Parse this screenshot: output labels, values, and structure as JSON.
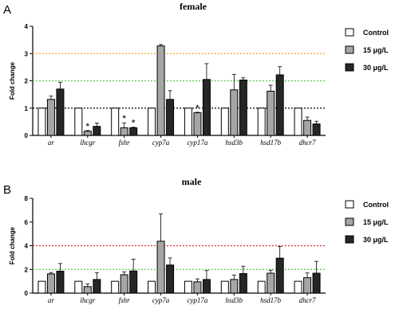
{
  "panel_letters": [
    "A",
    "B"
  ],
  "colors": {
    "control": "#ffffff",
    "dose15": "#a6a6a6",
    "dose30": "#262626",
    "orange_ref": "#f5a623",
    "green_ref": "#57c84d",
    "black_ref": "#000000",
    "red_ref": "#e8262c"
  },
  "chart_data": [
    {
      "type": "bar",
      "title": "female",
      "ylabel": "Fold change",
      "ylim": [
        0,
        4
      ],
      "yticks": [
        "0",
        "1",
        "2",
        "3",
        "4"
      ],
      "categories": [
        "ar",
        "lhcgr",
        "fshr",
        "cyp7a",
        "cyp17a",
        "hsd3b",
        "hsd17b",
        "dhcr7"
      ],
      "series": [
        {
          "name": "Control",
          "values": [
            1,
            1,
            1,
            1,
            1,
            1,
            1,
            1
          ],
          "errors": [
            0,
            0,
            0,
            0,
            0,
            0,
            0,
            0
          ]
        },
        {
          "name": "15 μg/L",
          "values": [
            1.32,
            0.15,
            0.28,
            3.28,
            0.83,
            1.67,
            1.62,
            0.55
          ],
          "errors": [
            0.12,
            0.03,
            0.18,
            0.05,
            0.02,
            0.57,
            0.22,
            0.12
          ]
        },
        {
          "name": "30 μg/L",
          "values": [
            1.7,
            0.33,
            0.28,
            1.32,
            2.05,
            2.03,
            2.22,
            0.42
          ],
          "errors": [
            0.25,
            0.12,
            0.02,
            0.32,
            0.58,
            0.08,
            0.3,
            0.1
          ]
        }
      ],
      "reference_lines": [
        {
          "y": 3,
          "color": "#f5a623"
        },
        {
          "y": 2,
          "color": "#57c84d"
        },
        {
          "y": 1,
          "color": "#000000"
        }
      ],
      "significance": [
        {
          "category": "lhcgr",
          "series": "15 μg/L",
          "label": "*"
        },
        {
          "category": "fshr",
          "series": "15 μg/L",
          "label": "*"
        },
        {
          "category": "fshr",
          "series": "30 μg/L",
          "label": "*"
        },
        {
          "category": "cyp17a",
          "series": "15 μg/L",
          "label": "*"
        }
      ],
      "legend_position": "right"
    },
    {
      "type": "bar",
      "title": "male",
      "ylabel": "Fold change",
      "ylim": [
        0,
        8
      ],
      "yticks": [
        "0",
        "2",
        "4",
        "6",
        "8"
      ],
      "categories": [
        "ar",
        "lhcgr",
        "fshr",
        "cyp7a",
        "cyp17a",
        "hsd3b",
        "hsd17b",
        "dhcr7"
      ],
      "series": [
        {
          "name": "Control",
          "values": [
            1,
            1,
            1,
            1,
            1,
            1,
            1,
            1
          ],
          "errors": [
            0,
            0,
            0,
            0,
            0,
            0,
            0,
            0
          ]
        },
        {
          "name": "15 μg/L",
          "values": [
            1.62,
            0.55,
            1.55,
            4.38,
            0.95,
            1.15,
            1.68,
            1.3
          ],
          "errors": [
            0.12,
            0.22,
            0.25,
            2.3,
            0.25,
            0.38,
            0.25,
            0.4
          ]
        },
        {
          "name": "30 μg/L",
          "values": [
            1.85,
            1.15,
            1.87,
            2.37,
            1.15,
            1.65,
            2.95,
            1.68
          ],
          "errors": [
            0.65,
            0.58,
            1.0,
            0.6,
            0.75,
            0.62,
            0.98,
            1.0
          ]
        }
      ],
      "reference_lines": [
        {
          "y": 4,
          "color": "#e8262c"
        },
        {
          "y": 2,
          "color": "#57c84d"
        }
      ],
      "significance": [],
      "legend_position": "right"
    }
  ]
}
